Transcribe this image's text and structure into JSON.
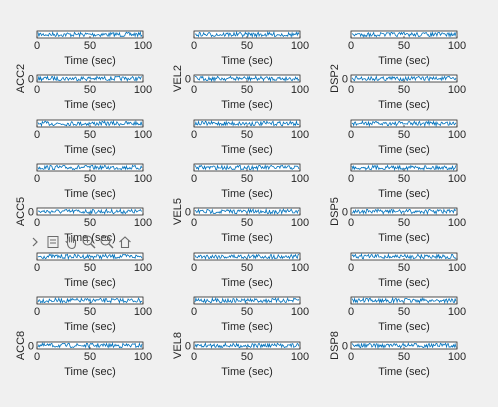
{
  "figure": {
    "background": "#f0f0f0",
    "axes_background": "#ffffff",
    "line_color": "#0072bd",
    "axis_color": "#262626"
  },
  "toolbar": {
    "buttons": [
      {
        "name": "more-icon",
        "label": "More"
      },
      {
        "name": "data-tips-icon",
        "label": "Data tips"
      },
      {
        "name": "pan-icon",
        "label": "Pan"
      },
      {
        "name": "zoom-in-icon",
        "label": "Zoom in"
      },
      {
        "name": "zoom-out-icon",
        "label": "Zoom out"
      },
      {
        "name": "restore-view-icon",
        "label": "Restore view"
      }
    ]
  },
  "chart_data": {
    "type": "line",
    "layout": "grid of 9 rows by 3 columns",
    "xlabel": "Time (sec)",
    "xticks": [
      "0",
      "50",
      "100"
    ],
    "xlim": [
      0,
      100
    ],
    "column_ylabels": [
      [
        "",
        "ACC2",
        "",
        "",
        "ACC5",
        "",
        "",
        "ACC8",
        ""
      ],
      [
        "",
        "VEL2",
        "",
        "",
        "VEL5",
        "",
        "",
        "VEL8",
        ""
      ],
      [
        "",
        "DSP2",
        "",
        "",
        "DSP5",
        "",
        "",
        "DSP8",
        ""
      ]
    ],
    "ytick_zero": "0",
    "rows_with_visible_zero_tick": [
      1,
      4,
      7
    ],
    "rows_hidden_bottom_labels": [
      2,
      5,
      8
    ]
  }
}
